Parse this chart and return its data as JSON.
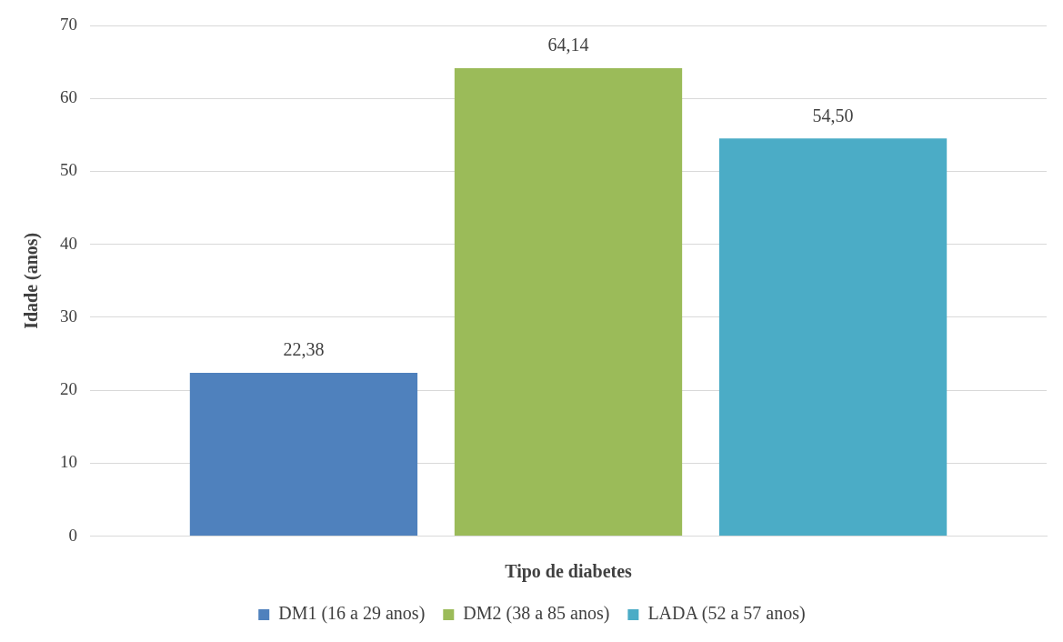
{
  "chart_data": {
    "type": "bar",
    "xlabel": "Tipo de diabetes",
    "ylabel": "Idade (anos)",
    "categories": [
      null
    ],
    "series": [
      {
        "name": "DM1 (16 a 29 anos)",
        "color": "#4f81bd",
        "values": [
          22.38
        ],
        "value_labels": [
          "22,38"
        ]
      },
      {
        "name": "DM2 (38 a 85 anos)",
        "color": "#9bbb59",
        "values": [
          64.14
        ],
        "value_labels": [
          "64,14"
        ]
      },
      {
        "name": "LADA (52 a 57 anos)",
        "color": "#4bacc6",
        "values": [
          54.5
        ],
        "value_labels": [
          "54,50"
        ]
      }
    ],
    "ylim": [
      0,
      70
    ],
    "yticks": [
      0,
      10,
      20,
      30,
      40,
      50,
      60,
      70
    ],
    "grid": "y",
    "legend": "bottom"
  }
}
